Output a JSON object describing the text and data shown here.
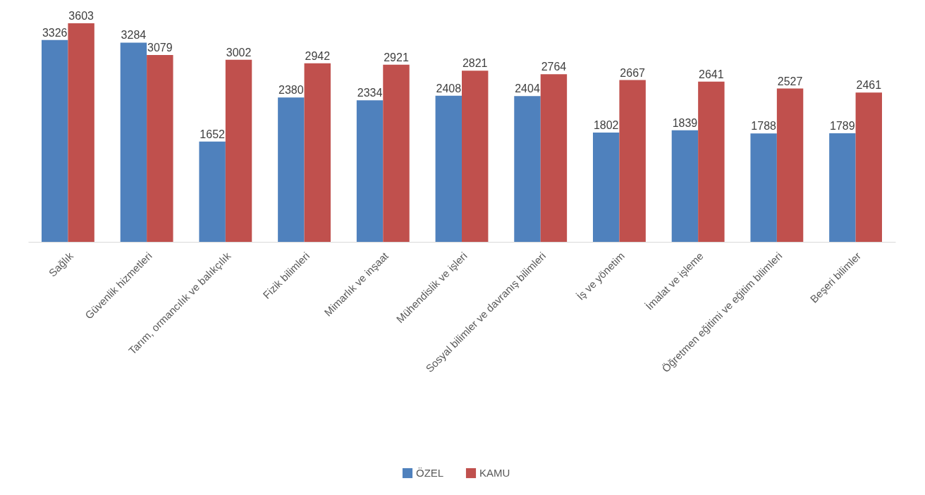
{
  "chart_data": {
    "type": "bar",
    "categories": [
      "Sağlık",
      "Güvenlik hizmetleri",
      "Tarım, ormancılık ve balıkçılık",
      "Fizik bilimleri",
      "Mimarlık ve inşaat",
      "Mühendislik ve işleri",
      "Sosyal bilimler ve davranış bilimleri",
      "İş ve yönetim",
      "İmalat ve işleme",
      "Öğretmen eğitimi ve eğitim bilimleri",
      "Beşeri bilimler"
    ],
    "series": [
      {
        "name": "ÖZEL",
        "color": "#4f81bd",
        "values": [
          3326,
          3284,
          1652,
          2380,
          2334,
          2408,
          2404,
          1802,
          1839,
          1788,
          1789
        ]
      },
      {
        "name": "KAMU",
        "color": "#c0504d",
        "values": [
          3603,
          3079,
          3002,
          2942,
          2921,
          2821,
          2764,
          2667,
          2641,
          2527,
          2461
        ]
      }
    ],
    "data_labels": true,
    "legend": "bottom"
  }
}
